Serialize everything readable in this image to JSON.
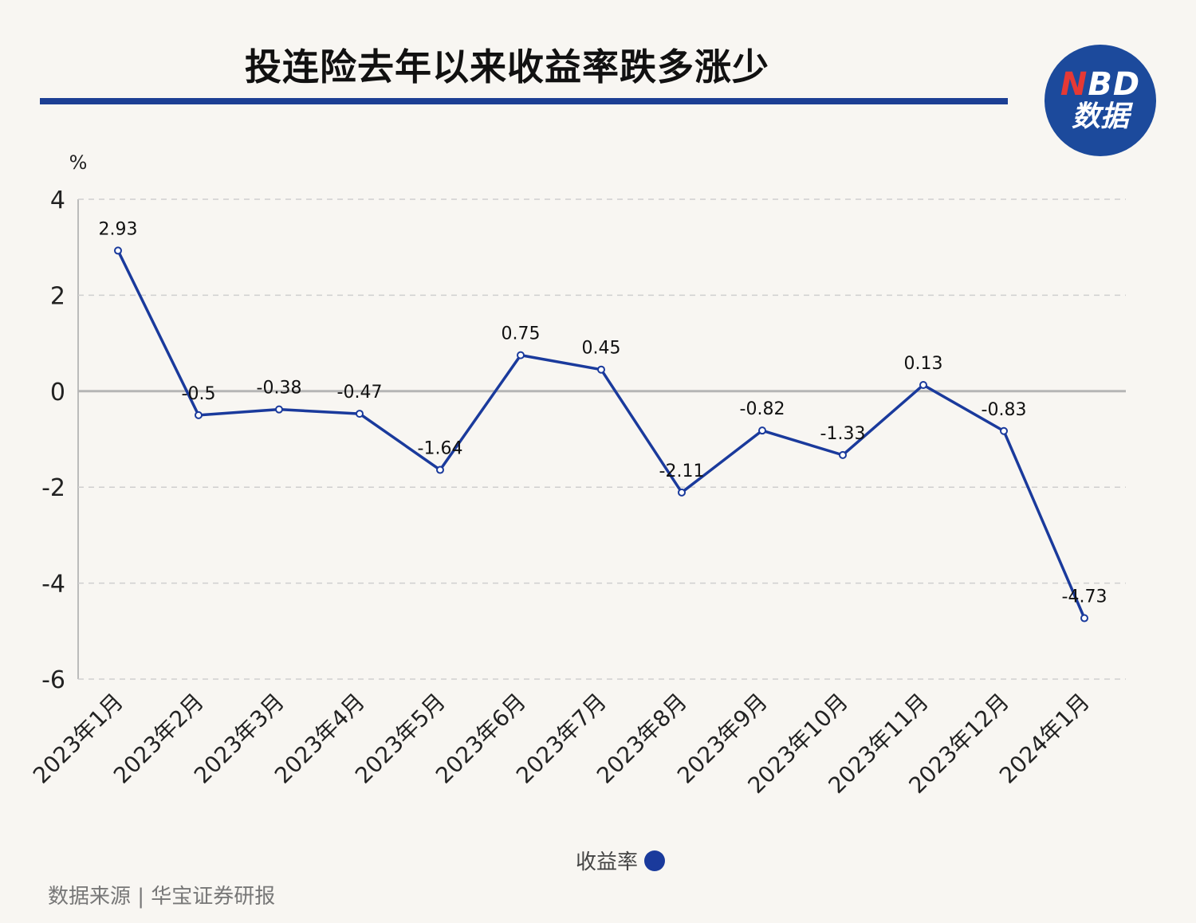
{
  "header": {
    "title": "投连险去年以来收益率跌多涨少",
    "logo_line1_n": "N",
    "logo_line1_rest": "BD",
    "logo_line2": "数据"
  },
  "footer": {
    "source": "数据来源 | 华宝证券研报"
  },
  "colors": {
    "line": "#1a3a9c",
    "rule": "#1c3f94",
    "logo_bg": "#1c4a9c",
    "background": "#f8f6f2"
  },
  "chart_data": {
    "type": "line",
    "title": "投连险去年以来收益率跌多涨少",
    "xlabel": "",
    "ylabel": "%",
    "ylim": [
      -6,
      4
    ],
    "yticks": [
      4,
      2,
      0,
      -2,
      -4,
      -6
    ],
    "grid": true,
    "legend": "bottom-center",
    "categories": [
      "2023年1月",
      "2023年2月",
      "2023年3月",
      "2023年4月",
      "2023年5月",
      "2023年6月",
      "2023年7月",
      "2023年8月",
      "2023年9月",
      "2023年10月",
      "2023年11月",
      "2023年12月",
      "2024年1月"
    ],
    "series": [
      {
        "name": "收益率",
        "values": [
          2.93,
          -0.5,
          -0.38,
          -0.47,
          -1.64,
          0.75,
          0.45,
          -2.11,
          -0.82,
          -1.33,
          0.13,
          -0.83,
          -4.73
        ],
        "labels": [
          "2.93",
          "-0.5",
          "-0.38",
          "-0.47",
          "-1.64",
          "0.75",
          "0.45",
          "-2.11",
          "-0.82",
          "-1.33",
          "0.13",
          "-0.83",
          "-4.73"
        ]
      }
    ]
  }
}
